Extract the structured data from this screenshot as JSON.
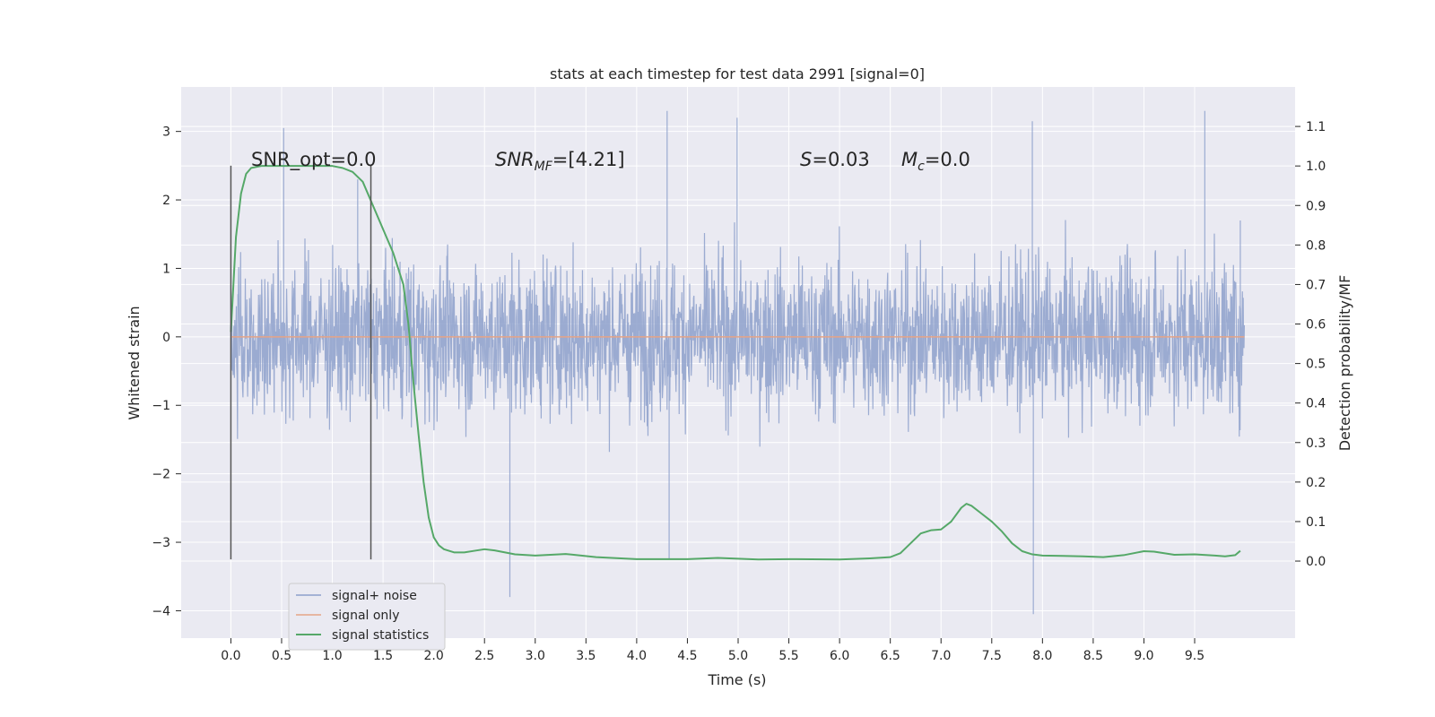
{
  "chart_data": {
    "type": "line",
    "title": "stats at each timestep for test data 2991 [signal=0]",
    "xlabel": "Time (s)",
    "ylabel": "Whitened strain",
    "ylabel_right": "Detection probability/MF",
    "xlim": [
      -0.49,
      10.49
    ],
    "ylim": [
      -4.4,
      3.65
    ],
    "ylim_right": [
      -0.195,
      1.2
    ],
    "x_ticks": [
      "0.0",
      "0.5",
      "1.0",
      "1.5",
      "2.0",
      "2.5",
      "3.0",
      "3.5",
      "4.0",
      "4.5",
      "5.0",
      "5.5",
      "6.0",
      "6.5",
      "7.0",
      "7.5",
      "8.0",
      "8.5",
      "9.0",
      "9.5"
    ],
    "y_ticks": [
      "3",
      "2",
      "1",
      "0",
      "−1",
      "−2",
      "−3",
      "−4"
    ],
    "y_ticks_right": [
      "1.1",
      "1.0",
      "0.9",
      "0.8",
      "0.7",
      "0.6",
      "0.5",
      "0.4",
      "0.3",
      "0.2",
      "0.1",
      "0.0"
    ],
    "grid": true,
    "legend_position": "lower-left",
    "annotations": {
      "snr_opt": "SNR_opt=0.0",
      "snr_mf_label": "SNR",
      "snr_mf_sub": "MF",
      "snr_mf_value": "=[4.21]",
      "s_label": "S",
      "s_value": "=0.03",
      "mc_label": "M",
      "mc_sub": "c",
      "mc_value": "=0.0"
    },
    "vertical_lines": [
      {
        "x": 0.0,
        "ymin": -3.25,
        "ymax": 2.5
      },
      {
        "x": 1.38,
        "ymin": -3.25,
        "ymax": 2.5
      }
    ],
    "series": [
      {
        "name": "signal+ noise",
        "color": "#8da0cb",
        "description_range": [
          0.0,
          9.99
        ],
        "envelope_upper": 1.35,
        "envelope_lower": -1.35,
        "peaks": [
          [
            0.52,
            3.05
          ],
          [
            1.25,
            2.3
          ],
          [
            2.75,
            -3.8
          ],
          [
            4.3,
            3.3
          ],
          [
            4.32,
            -3.25
          ],
          [
            4.99,
            3.2
          ],
          [
            7.91,
            -4.05
          ],
          [
            7.9,
            3.15
          ],
          [
            9.6,
            3.3
          ],
          [
            9.95,
            1.7
          ]
        ]
      },
      {
        "name": "signal only",
        "color": "#e5a486",
        "x": [
          0.0,
          9.99
        ],
        "values": [
          0.0,
          0.0
        ]
      },
      {
        "name": "signal statistics",
        "color": "#55a868",
        "axis": "right",
        "x": [
          0.0,
          0.05,
          0.1,
          0.15,
          0.2,
          0.3,
          0.5,
          0.8,
          1.0,
          1.1,
          1.2,
          1.3,
          1.4,
          1.5,
          1.6,
          1.7,
          1.75,
          1.8,
          1.85,
          1.9,
          1.95,
          2.0,
          2.05,
          2.1,
          2.2,
          2.3,
          2.4,
          2.5,
          2.6,
          2.8,
          3.0,
          3.3,
          3.6,
          4.0,
          4.5,
          4.8,
          5.2,
          5.5,
          6.0,
          6.3,
          6.5,
          6.6,
          6.7,
          6.8,
          6.9,
          7.0,
          7.1,
          7.2,
          7.25,
          7.3,
          7.4,
          7.5,
          7.6,
          7.7,
          7.8,
          7.9,
          8.0,
          8.2,
          8.4,
          8.6,
          8.8,
          9.0,
          9.1,
          9.3,
          9.5,
          9.7,
          9.8,
          9.9,
          9.95
        ],
        "values": [
          0.58,
          0.82,
          0.93,
          0.98,
          0.995,
          1.0,
          1.0,
          1.0,
          1.0,
          0.995,
          0.985,
          0.96,
          0.9,
          0.84,
          0.78,
          0.7,
          0.6,
          0.45,
          0.32,
          0.2,
          0.11,
          0.06,
          0.04,
          0.03,
          0.022,
          0.022,
          0.026,
          0.03,
          0.027,
          0.017,
          0.014,
          0.018,
          0.01,
          0.005,
          0.005,
          0.008,
          0.004,
          0.005,
          0.004,
          0.007,
          0.01,
          0.02,
          0.045,
          0.07,
          0.078,
          0.08,
          0.1,
          0.135,
          0.145,
          0.14,
          0.12,
          0.1,
          0.075,
          0.045,
          0.025,
          0.017,
          0.014,
          0.013,
          0.012,
          0.01,
          0.015,
          0.025,
          0.024,
          0.016,
          0.017,
          0.014,
          0.012,
          0.015,
          0.026
        ]
      }
    ]
  }
}
